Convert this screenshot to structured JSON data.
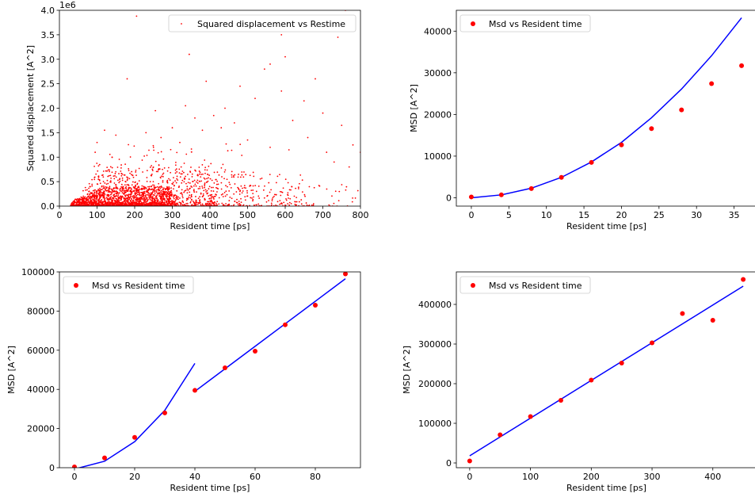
{
  "chart_data": [
    {
      "type": "scatter",
      "xlabel": "Resident time [ps]",
      "ylabel": "Squared displacement [A^2]",
      "xlim": [
        0,
        800
      ],
      "ylim": [
        0,
        4000000
      ],
      "y_scale_label": "1e6",
      "xticks": [
        0,
        100,
        200,
        300,
        400,
        500,
        600,
        700,
        800
      ],
      "yticks": [
        0,
        500000,
        1000000,
        1500000,
        2000000,
        2500000,
        3000000,
        3500000,
        4000000
      ],
      "ytick_labels": [
        "0.0",
        "0.5",
        "1.0",
        "1.5",
        "2.0",
        "2.5",
        "3.0",
        "3.5",
        "4.0"
      ],
      "legend": [
        "Squared displacement vs Restime"
      ],
      "legend_position": "upper-right",
      "colors": {
        "points": "#ff0000"
      },
      "series": [
        {
          "name": "Squared displacement vs Restime",
          "marker_size": "small",
          "approximate": true,
          "points": [
            [
              205,
              3880000
            ],
            [
              760,
              4000000
            ],
            [
              590,
              3500000
            ],
            [
              740,
              3450000
            ],
            [
              345,
              3100000
            ],
            [
              600,
              3050000
            ],
            [
              180,
              2600000
            ],
            [
              390,
              2550000
            ],
            [
              545,
              2800000
            ],
            [
              680,
              2600000
            ],
            [
              255,
              1950000
            ],
            [
              520,
              2200000
            ],
            [
              650,
              2150000
            ],
            [
              590,
              2350000
            ],
            [
              480,
              2450000
            ],
            [
              335,
              2050000
            ],
            [
              560,
              2900000
            ],
            [
              440,
              2000000
            ],
            [
              700,
              1900000
            ],
            [
              750,
              1650000
            ],
            [
              300,
              1600000
            ],
            [
              410,
              1850000
            ],
            [
              620,
              1750000
            ],
            [
              465,
              1700000
            ],
            [
              780,
              1250000
            ],
            [
              120,
              1550000
            ],
            [
              150,
              1450000
            ],
            [
              230,
              1500000
            ],
            [
              270,
              1400000
            ],
            [
              360,
              1800000
            ],
            [
              100,
              1300000
            ],
            [
              380,
              1550000
            ],
            [
              430,
              1600000
            ],
            [
              500,
              1350000
            ],
            [
              660,
              1400000
            ],
            [
              710,
              1100000
            ],
            [
              800,
              1100000
            ],
            [
              95,
              1100000
            ],
            [
              140,
              1000000
            ],
            [
              250,
              1200000
            ],
            [
              320,
              1300000
            ],
            [
              560,
              1200000
            ],
            [
              610,
              1150000
            ],
            [
              730,
              900000
            ],
            [
              770,
              800000
            ]
          ],
          "density_blobs": [
            {
              "x": [
                30,
                300
              ],
              "y_max": 400000,
              "n": 1400
            },
            {
              "x": [
                60,
                420
              ],
              "y_max": 800000,
              "n": 700
            },
            {
              "x": [
                80,
                500
              ],
              "y_max": 1300000,
              "n": 260
            },
            {
              "x": [
                300,
                650
              ],
              "y_max": 700000,
              "n": 220
            },
            {
              "x": [
                450,
                800
              ],
              "y_max": 500000,
              "n": 70
            }
          ]
        }
      ]
    },
    {
      "type": "scatter",
      "xlabel": "Resident time [ps]",
      "ylabel": "MSD [A^2]",
      "xlim": [
        -2,
        38
      ],
      "ylim": [
        -2000,
        45000
      ],
      "xticks": [
        0,
        5,
        10,
        15,
        20,
        25,
        30,
        35
      ],
      "yticks": [
        0,
        10000,
        20000,
        30000,
        40000
      ],
      "legend": [
        "Msd vs Resident time"
      ],
      "legend_position": "upper-left",
      "colors": {
        "points": "#ff0000",
        "fit": "#0000ff"
      },
      "series": [
        {
          "name": "Msd vs Resident time",
          "x": [
            0,
            4,
            8,
            12,
            16,
            20,
            24,
            28,
            32,
            36
          ],
          "y": [
            200,
            700,
            2200,
            4900,
            8500,
            12700,
            16600,
            21100,
            27400,
            31700
          ]
        }
      ],
      "fit_lines": [
        {
          "x": [
            0,
            4,
            8,
            12,
            16,
            20,
            24,
            28,
            32,
            36
          ],
          "y": [
            0,
            700,
            2300,
            4900,
            8600,
            13300,
            19200,
            26100,
            34100,
            43200
          ]
        }
      ]
    },
    {
      "type": "scatter",
      "xlabel": "Resident time [ps]",
      "ylabel": "MSD [A^2]",
      "xlim": [
        -5,
        95
      ],
      "ylim": [
        0,
        100000
      ],
      "xticks": [
        0,
        20,
        40,
        60,
        80
      ],
      "yticks": [
        0,
        20000,
        40000,
        60000,
        80000,
        100000
      ],
      "legend": [
        "Msd vs Resident time"
      ],
      "legend_position": "upper-left",
      "colors": {
        "points": "#ff0000",
        "fit": "#0000ff"
      },
      "series": [
        {
          "name": "Msd vs Resident time",
          "x": [
            0,
            10,
            20,
            30,
            40,
            50,
            60,
            70,
            80,
            90
          ],
          "y": [
            400,
            5000,
            15500,
            28000,
            39500,
            51000,
            59500,
            73000,
            83000,
            99000
          ]
        }
      ],
      "fit_lines": [
        {
          "x": [
            0,
            10,
            20,
            30,
            40
          ],
          "y": [
            -700,
            3300,
            13300,
            29300,
            53300
          ]
        },
        {
          "x": [
            40,
            50,
            60,
            70,
            80,
            90
          ],
          "y": [
            39000,
            50500,
            62000,
            73500,
            85000,
            96500
          ]
        }
      ]
    },
    {
      "type": "scatter",
      "xlabel": "Resident time [ps]",
      "ylabel": "MSD [A^2]",
      "xlim": [
        -22,
        472
      ],
      "ylim": [
        -12000,
        482000
      ],
      "xticks": [
        0,
        100,
        200,
        300,
        400
      ],
      "yticks": [
        0,
        100000,
        200000,
        300000,
        400000
      ],
      "legend": [
        "Msd vs Resident time"
      ],
      "legend_position": "upper-left",
      "colors": {
        "points": "#ff0000",
        "fit": "#0000ff"
      },
      "series": [
        {
          "name": "Msd vs Resident time",
          "x": [
            0,
            50,
            100,
            150,
            200,
            250,
            300,
            350,
            400,
            450
          ],
          "y": [
            5000,
            71000,
            117000,
            158000,
            209000,
            252000,
            303000,
            377000,
            360000,
            463000
          ]
        }
      ],
      "fit_lines": [
        {
          "x": [
            0,
            450
          ],
          "y": [
            18000,
            446000
          ]
        }
      ]
    }
  ]
}
